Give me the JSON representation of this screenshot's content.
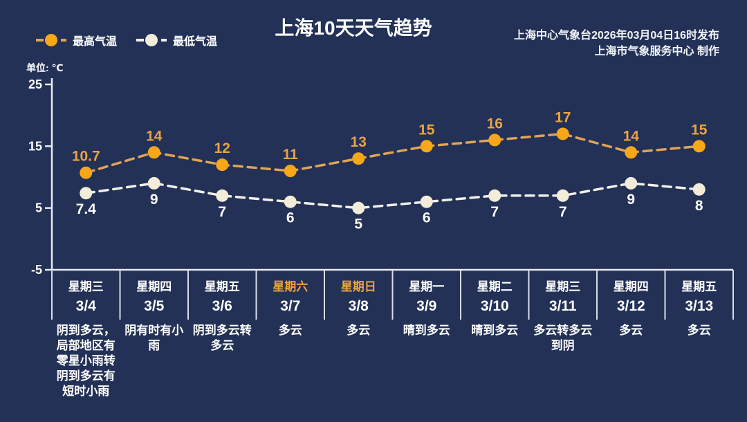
{
  "title": "上海10天天气趋势",
  "publisher": {
    "line1": "上海中心气象台2026年03月04日16时发布",
    "line2": "上海市气象服务中心 制作"
  },
  "legend": {
    "high_label": "最高气温",
    "low_label": "最低气温"
  },
  "unit_label": "单位: ℃",
  "colors": {
    "background": "#233157",
    "high_marker": "#F7A717",
    "high_line": "#E0A455",
    "high_label": "#EBA43E",
    "low_marker": "#F3ECD9",
    "low_line": "#F2F0EA",
    "low_label": "#FFFFFF",
    "axis": "#E9ECF2",
    "divider": "#D9DEE8",
    "weekend_text": "#EBA43E",
    "text": "#FFFFFF"
  },
  "chart_data": {
    "type": "line",
    "categories": [
      "3/4",
      "3/5",
      "3/6",
      "3/7",
      "3/8",
      "3/9",
      "3/10",
      "3/11",
      "3/12",
      "3/13"
    ],
    "series": [
      {
        "name": "最高气温",
        "values": [
          10.7,
          14,
          12,
          11,
          13,
          15,
          16,
          17,
          14,
          15
        ]
      },
      {
        "name": "最低气温",
        "values": [
          7.4,
          9,
          7,
          6,
          5,
          6,
          7,
          7,
          9,
          8
        ]
      }
    ],
    "title": "上海10天天气趋势",
    "ylabel": "单位: ℃",
    "yticks": [
      25,
      15,
      5,
      -5
    ],
    "ylim": [
      -5,
      25
    ],
    "grid": false,
    "line_style": "dashed",
    "legend_position": "top-left"
  },
  "days": [
    {
      "weekday": "星期三",
      "date": "3/4",
      "weekend": false,
      "description": "阴到多云，局部地区有零星小雨转阴到多云有短时小雨"
    },
    {
      "weekday": "星期四",
      "date": "3/5",
      "weekend": false,
      "description": "阴有时有小雨"
    },
    {
      "weekday": "星期五",
      "date": "3/6",
      "weekend": false,
      "description": "阴到多云转多云"
    },
    {
      "weekday": "星期六",
      "date": "3/7",
      "weekend": true,
      "description": "多云"
    },
    {
      "weekday": "星期日",
      "date": "3/8",
      "weekend": true,
      "description": "多云"
    },
    {
      "weekday": "星期一",
      "date": "3/9",
      "weekend": false,
      "description": "晴到多云"
    },
    {
      "weekday": "星期二",
      "date": "3/10",
      "weekend": false,
      "description": "晴到多云"
    },
    {
      "weekday": "星期三",
      "date": "3/11",
      "weekend": false,
      "description": "多云转多云到阴"
    },
    {
      "weekday": "星期四",
      "date": "3/12",
      "weekend": false,
      "description": "多云"
    },
    {
      "weekday": "星期五",
      "date": "3/13",
      "weekend": false,
      "description": "多云"
    }
  ]
}
